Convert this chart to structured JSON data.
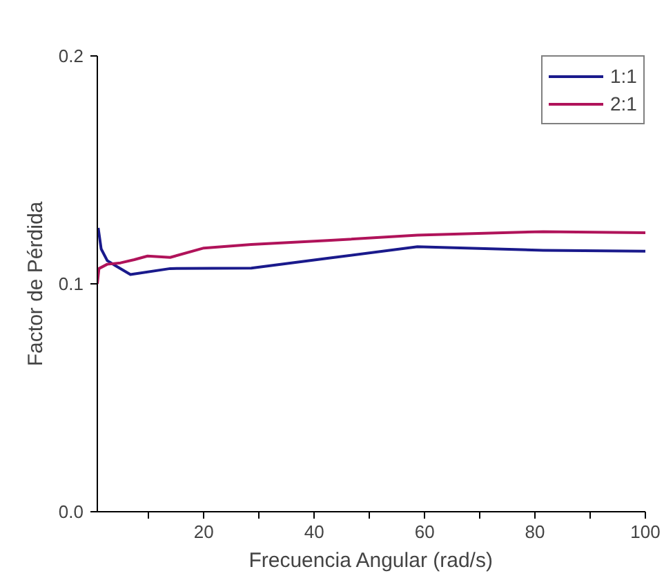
{
  "chart_data": {
    "type": "line",
    "xlabel": "Frecuencia Angular (rad/s)",
    "ylabel": "Factor de Pérdida",
    "xlim": [
      0.7,
      100
    ],
    "ylim": [
      0,
      0.2
    ],
    "xticks": [
      {
        "value": 10,
        "label": null
      },
      20,
      {
        "value": 30,
        "label": null
      },
      40,
      {
        "value": 50,
        "label": null
      },
      60,
      {
        "value": 70,
        "label": null
      },
      80,
      {
        "value": 90,
        "label": null
      },
      100
    ],
    "yticks": [
      "0.0",
      0.1,
      0.2
    ],
    "grid": false,
    "legend": "top right",
    "line_style": "solid",
    "marker": "none",
    "series": [
      {
        "name": "1:1",
        "color": "#1a1a8c",
        "x": [
          0.86,
          1.4,
          2.5,
          4.1,
          6.7,
          13.9,
          28.6,
          42.4,
          58.7,
          81.5,
          100
        ],
        "values": [
          0.1245,
          0.1153,
          0.1102,
          0.1078,
          0.1041,
          0.1067,
          0.1069,
          0.1112,
          0.1163,
          0.1147,
          0.1143
        ]
      },
      {
        "name": "2:1",
        "color": "#b0135a",
        "x": [
          0.7,
          1.0,
          2.5,
          4.9,
          7.4,
          9.8,
          13.9,
          20,
          28.6,
          42.4,
          58.7,
          81.5,
          100
        ],
        "values": [
          0.1,
          0.1067,
          0.1086,
          0.1092,
          0.1106,
          0.1122,
          0.1116,
          0.1157,
          0.1173,
          0.119,
          0.1214,
          0.1229,
          0.1224
        ]
      }
    ]
  }
}
